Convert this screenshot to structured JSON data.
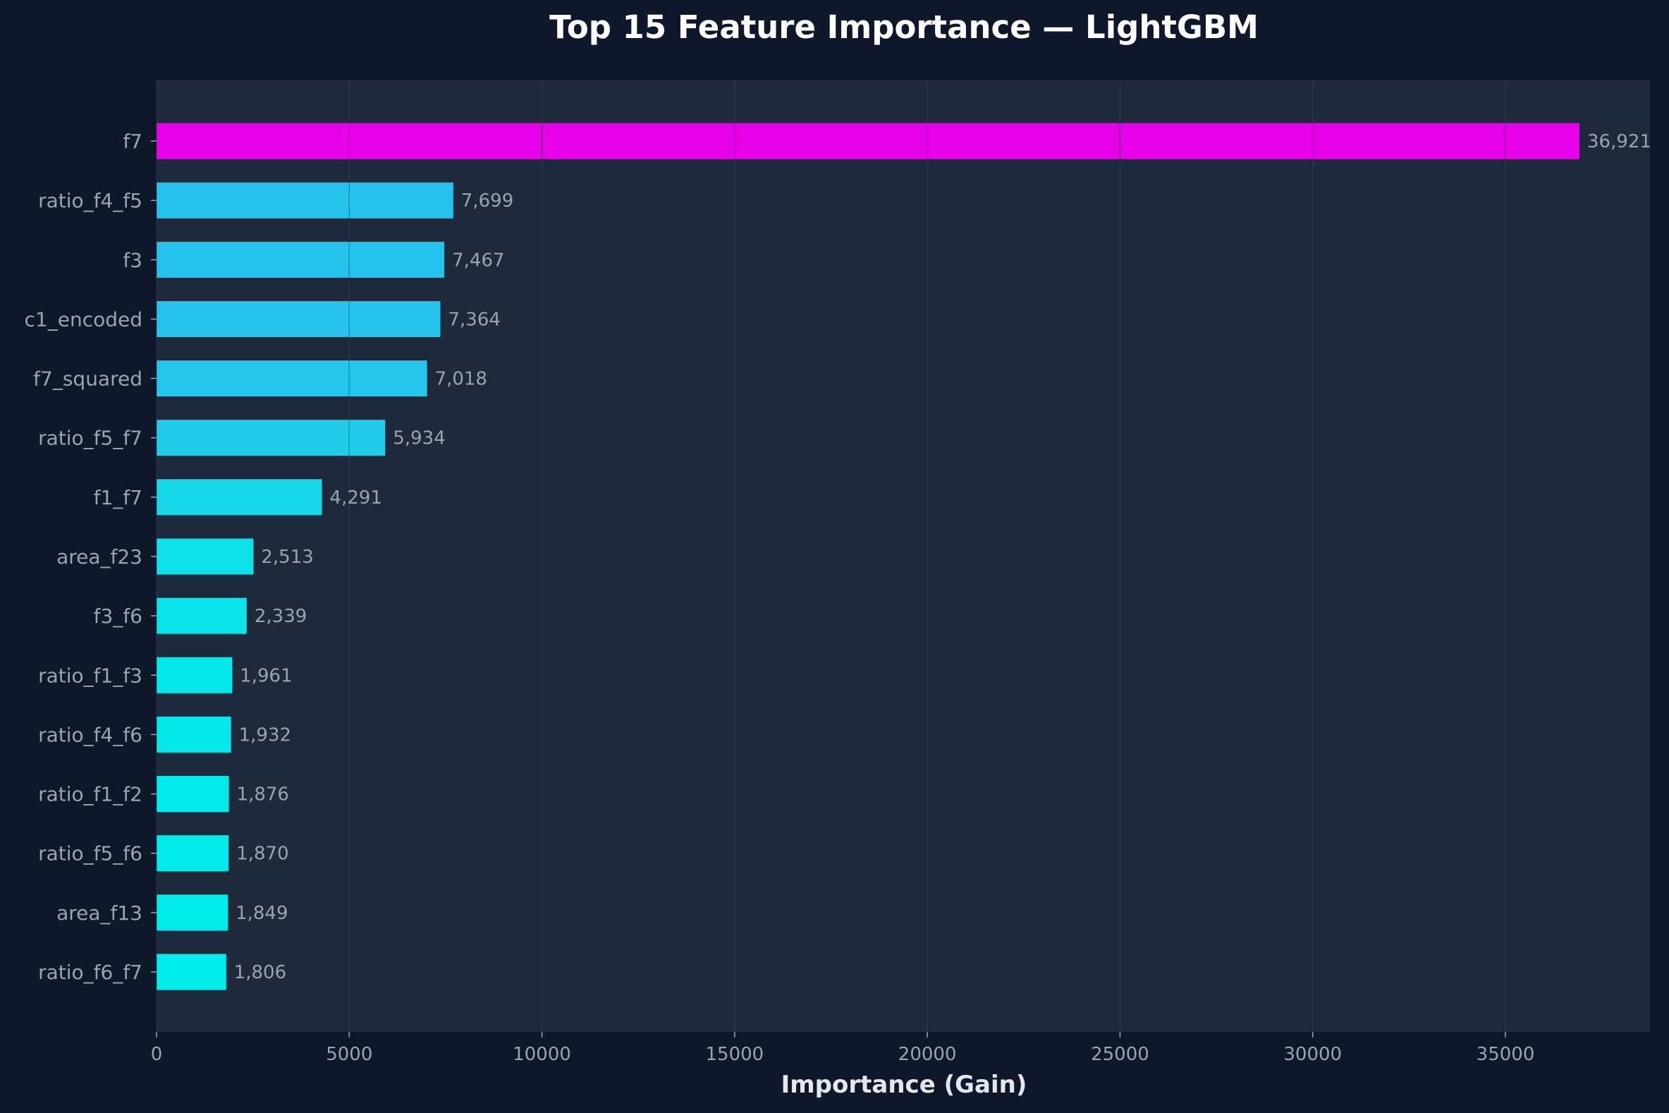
{
  "chart_data": {
    "type": "bar",
    "orientation": "horizontal",
    "title": "Top 15 Feature Importance — LightGBM",
    "xlabel": "Importance (Gain)",
    "ylabel": "",
    "xlim": [
      0,
      38750
    ],
    "xticks": [
      0,
      5000,
      10000,
      15000,
      20000,
      25000,
      30000,
      35000
    ],
    "grid": true,
    "categories": [
      "f7",
      "ratio_f4_f5",
      "f3",
      "c1_encoded",
      "f7_squared",
      "ratio_f5_f7",
      "f1_f7",
      "area_f23",
      "f3_f6",
      "ratio_f1_f3",
      "ratio_f4_f6",
      "ratio_f1_f2",
      "ratio_f5_f6",
      "area_f13",
      "ratio_f6_f7"
    ],
    "values": [
      36921,
      7699,
      7467,
      7364,
      7018,
      5934,
      4291,
      2513,
      2339,
      1961,
      1932,
      1876,
      1870,
      1849,
      1806
    ],
    "value_labels": [
      "36,921",
      "7,699",
      "7,467",
      "7,364",
      "7,018",
      "5,934",
      "4,291",
      "2,513",
      "2,339",
      "1,961",
      "1,932",
      "1,876",
      "1,870",
      "1,849",
      "1,806"
    ],
    "colors": [
      "#e800e8",
      "#28c3ec",
      "#28c3ec",
      "#28c3ec",
      "#26c6ec",
      "#22cdea",
      "#16d8e8",
      "#0ee1e8",
      "#0ae3e8",
      "#06e7ea",
      "#05e8ea",
      "#03eaeb",
      "#03eaeb",
      "#02ebeb",
      "#00ecec"
    ]
  },
  "colors": {
    "background": "#0f172a",
    "plot_background": "#1e293b",
    "grid": "#334155"
  }
}
